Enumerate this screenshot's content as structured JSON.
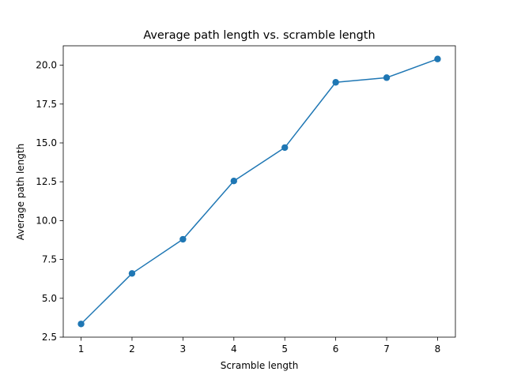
{
  "chart_data": {
    "type": "line",
    "title": "Average path length vs. scramble length",
    "xlabel": "Scramble length",
    "ylabel": "Average path length",
    "x": [
      1,
      2,
      3,
      4,
      5,
      6,
      7,
      8
    ],
    "series": [
      {
        "values": [
          3.35,
          6.6,
          8.8,
          12.55,
          14.7,
          18.9,
          19.2,
          20.4
        ],
        "color": "#1f77b4"
      }
    ],
    "xlim": [
      0.65,
      8.35
    ],
    "ylim": [
      2.5,
      21.25
    ],
    "xticks": [
      "1",
      "2",
      "3",
      "4",
      "5",
      "6",
      "7",
      "8"
    ],
    "yticks": [
      "2.5",
      "5.0",
      "7.5",
      "10.0",
      "12.5",
      "15.0",
      "17.5",
      "20.0"
    ],
    "grid": false,
    "markers": true
  }
}
